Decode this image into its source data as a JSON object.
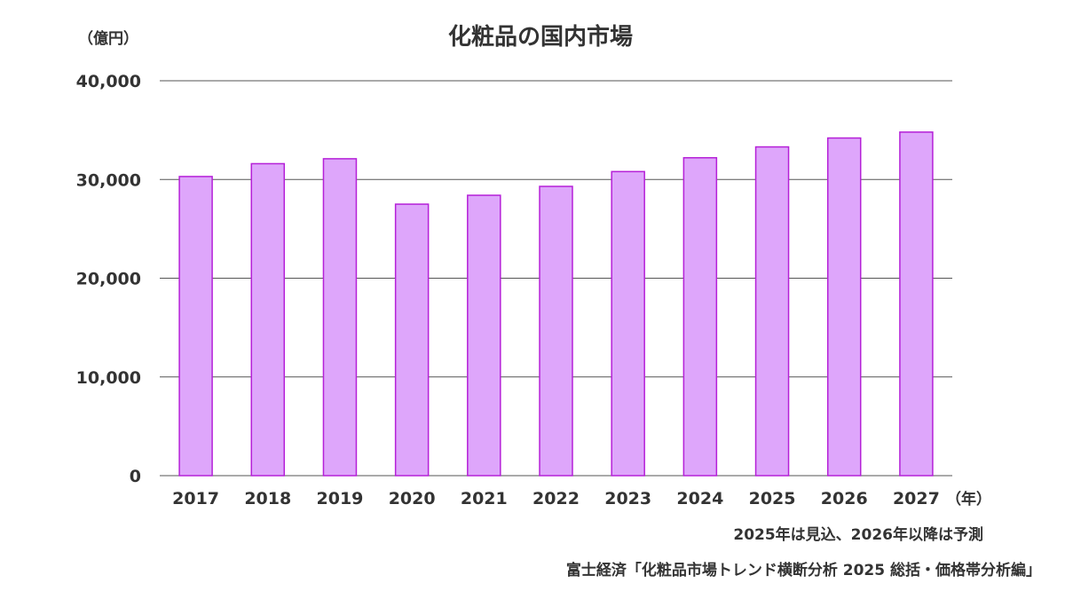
{
  "chart_data": {
    "type": "bar",
    "title": "化粧品の国内市場",
    "ylabel": "（億円）",
    "xlabel": "（年）",
    "ylim": [
      0,
      40000
    ],
    "yticks": [
      0,
      10000,
      20000,
      30000,
      40000
    ],
    "ytick_labels": [
      "0",
      "10,000",
      "20,000",
      "30,000",
      "40,000"
    ],
    "categories": [
      "2017",
      "2018",
      "2019",
      "2020",
      "2021",
      "2022",
      "2023",
      "2024",
      "2025",
      "2026",
      "2027"
    ],
    "values": [
      30300,
      31600,
      32100,
      27500,
      28400,
      29300,
      30800,
      32200,
      33300,
      34200,
      34800
    ],
    "grid": true,
    "legend": "none",
    "colors": {
      "bar_fill": "#dea6fb",
      "bar_edge": "#b520d8"
    }
  },
  "notes": {
    "forecast": "2025年は見込、2026年以降は予測",
    "source": "富士経済「化粧品市場トレンド横断分析 2025 総括・価格帯分析編」"
  }
}
